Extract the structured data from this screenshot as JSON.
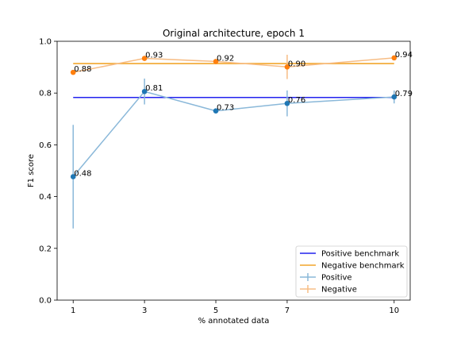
{
  "chart_data": {
    "type": "line",
    "title": "Original architecture, epoch 1",
    "xlabel": "% annotated data",
    "ylabel": "F1 score",
    "x": [
      1,
      3,
      5,
      7,
      10
    ],
    "xticks": [
      "1",
      "3",
      "5",
      "7",
      "10"
    ],
    "xlim": [
      0.55,
      10.45
    ],
    "ylim": [
      0.0,
      1.0
    ],
    "yticks": [
      "0.0",
      "0.2",
      "0.4",
      "0.6",
      "0.8",
      "1.0"
    ],
    "grid": false,
    "legend_position": "lower-right",
    "benchmarks": [
      {
        "name": "Positive benchmark",
        "value": 0.783,
        "color": "#2222ee"
      },
      {
        "name": "Negative benchmark",
        "value": 0.914,
        "color": "#f2a62b"
      }
    ],
    "series": [
      {
        "name": "Positive",
        "values": [
          0.477,
          0.806,
          0.731,
          0.76,
          0.785
        ],
        "errors": [
          0.2,
          0.05,
          0.0,
          0.05,
          0.025
        ],
        "labels": [
          "0.48",
          "0.81",
          "0.73",
          "0.76",
          "0.79"
        ],
        "line_color": "#8ab8d9",
        "marker_color": "#1f77b4"
      },
      {
        "name": "Negative",
        "values": [
          0.88,
          0.934,
          0.922,
          0.901,
          0.936
        ],
        "errors": [
          0.0,
          0.0,
          0.0,
          0.047,
          0.0
        ],
        "labels": [
          "0.88",
          "0.93",
          "0.92",
          "0.90",
          "0.94"
        ],
        "line_color": "#f7bd85",
        "marker_color": "#ff7f0e"
      }
    ],
    "legend": [
      "Positive benchmark",
      "Negative benchmark",
      "Positive",
      "Negative"
    ]
  }
}
